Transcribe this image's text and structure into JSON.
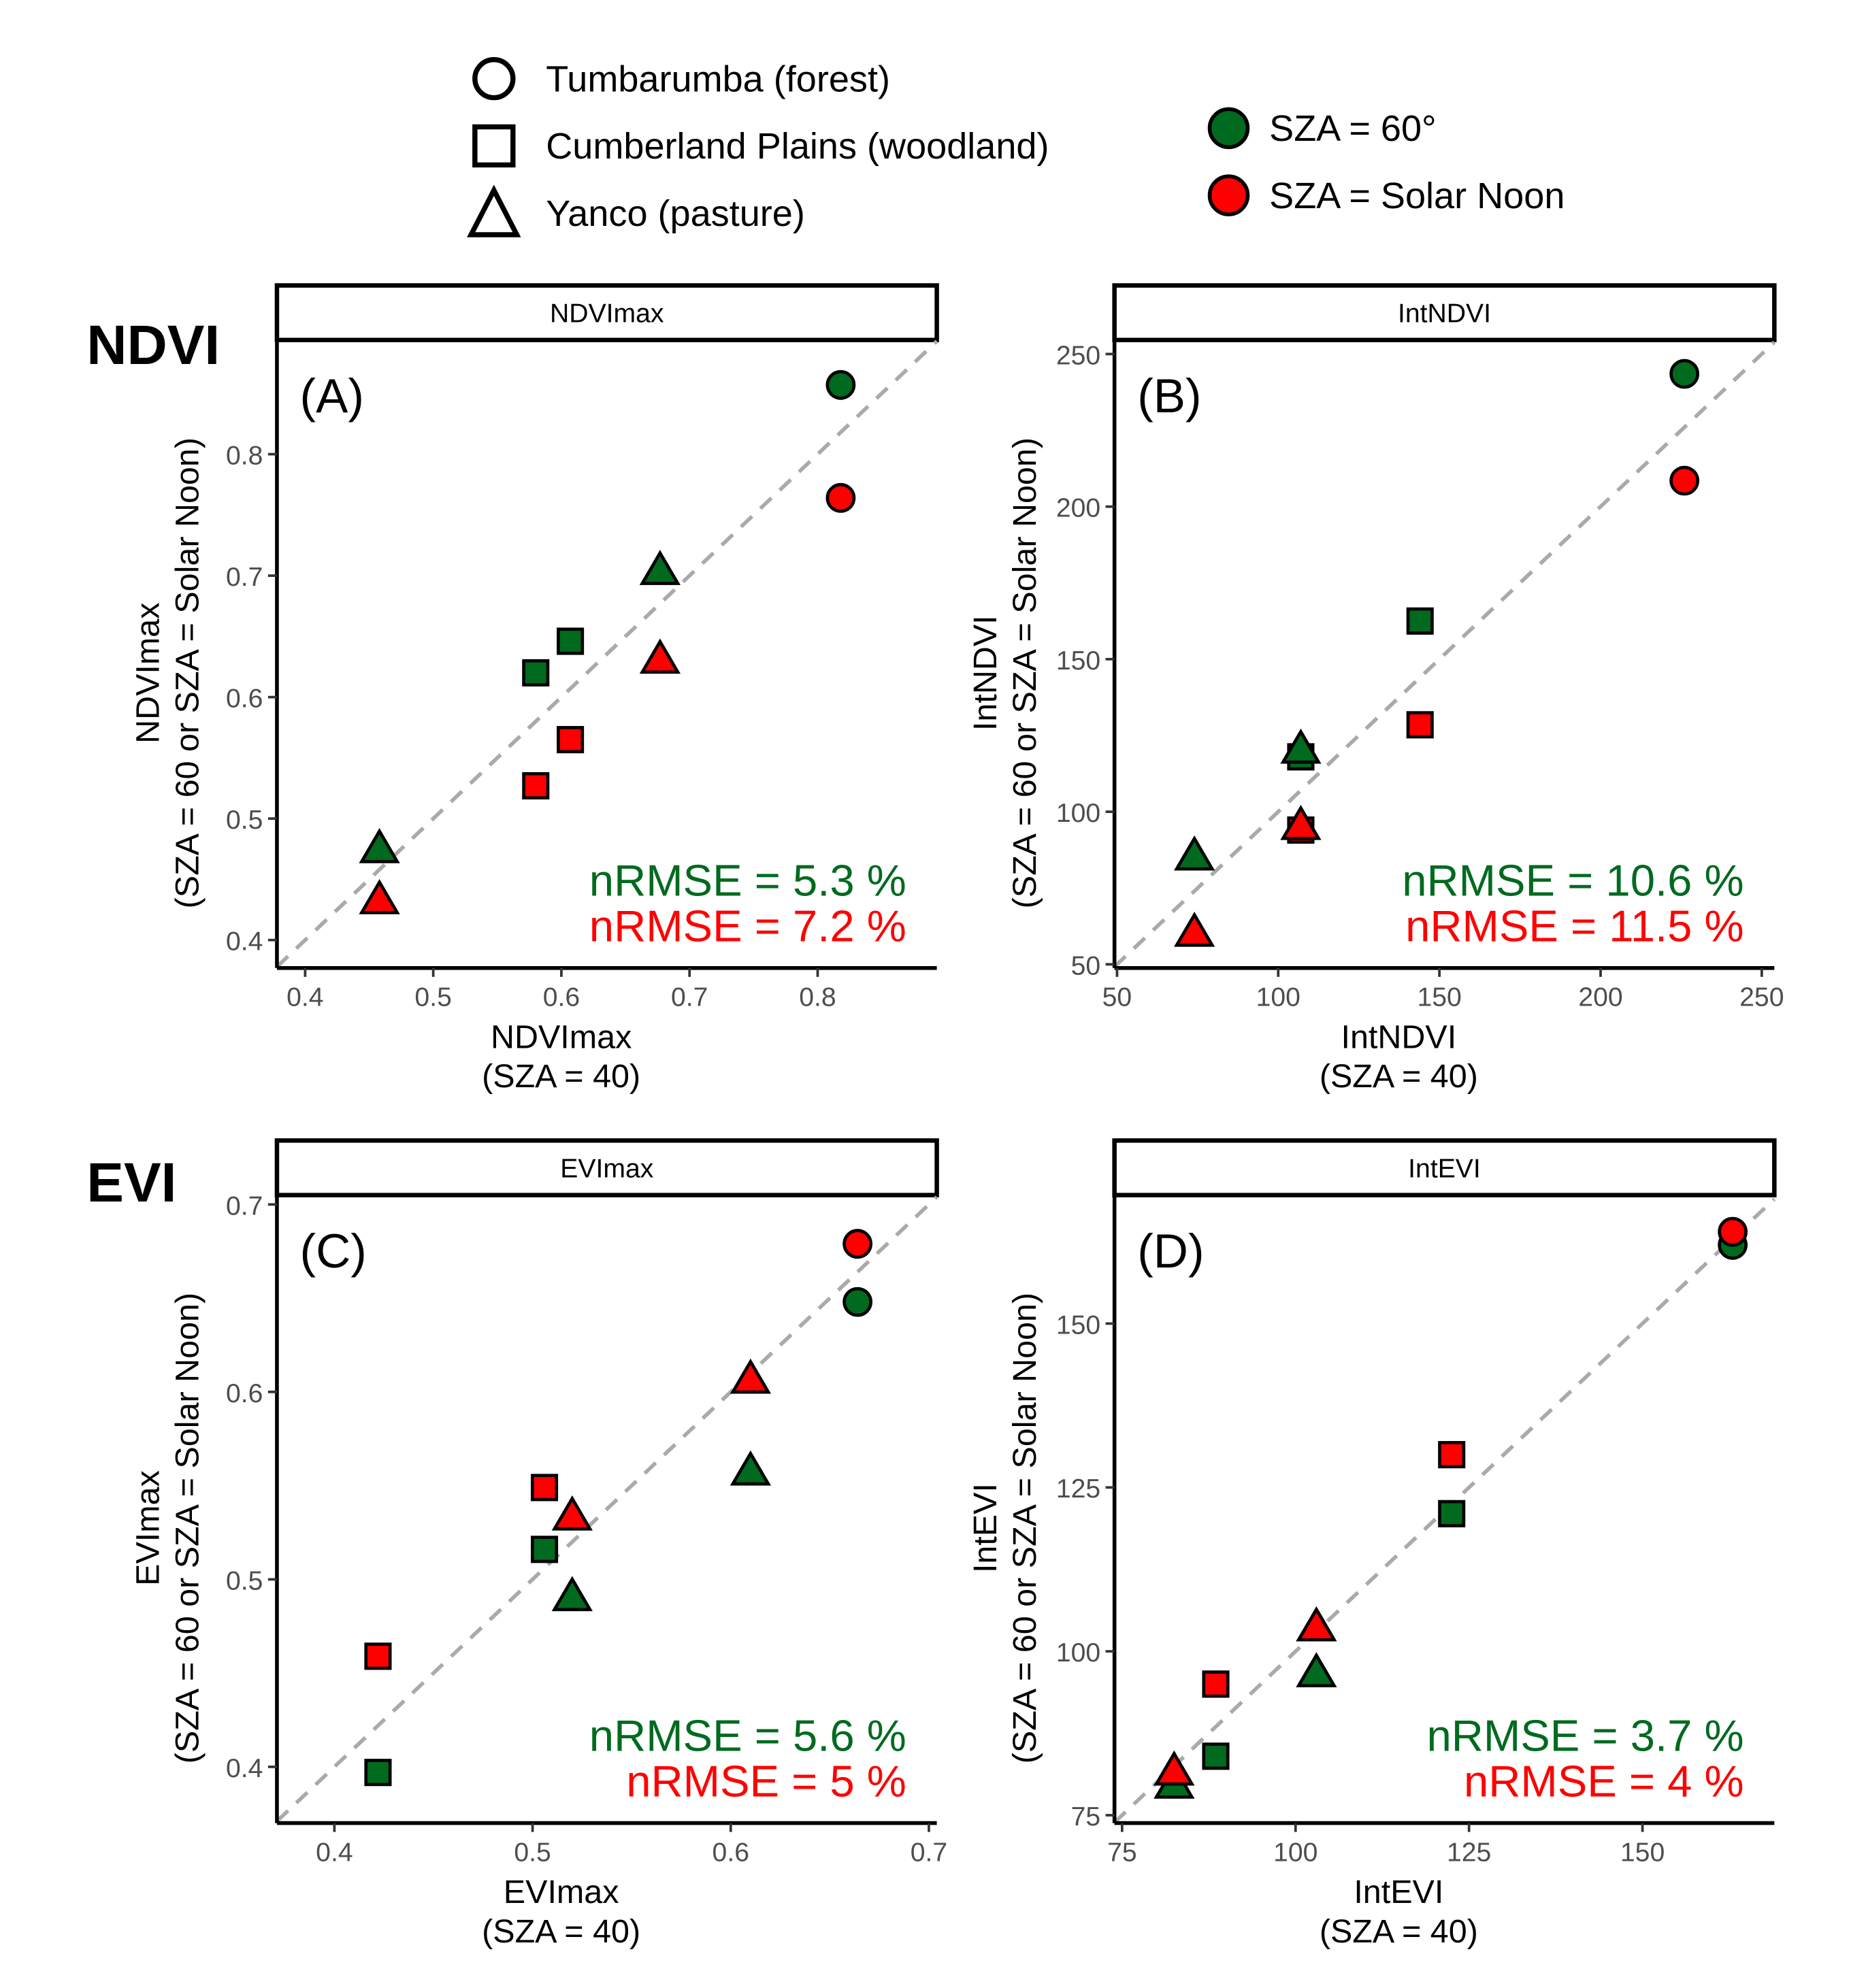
{
  "legend": {
    "shapes": [
      {
        "shape": "circle",
        "label": "Tumbarumba (forest)"
      },
      {
        "shape": "square",
        "label": "Cumberland Plains (woodland)"
      },
      {
        "shape": "triangle",
        "label": "Yanco (pasture)"
      }
    ],
    "colors": [
      {
        "color": "#006a1f",
        "label": "SZA = 60°"
      },
      {
        "color": "#ff0000",
        "label": "SZA = Solar Noon"
      }
    ]
  },
  "row_labels": {
    "ndvi": "NDVI",
    "evi": "EVI"
  },
  "chart_data": [
    {
      "type": "scatter",
      "panel_label": "(A)",
      "strip": "NDVImax",
      "xlabel": [
        "NDVImax",
        "(SZA = 40)"
      ],
      "ylabel": [
        "NDVImax",
        "(SZA = 60 or SZA = Solar Noon)"
      ],
      "xlim": [
        0.378,
        0.893
      ],
      "ylim": [
        0.377,
        0.894
      ],
      "xticks": [
        "0.4",
        "0.5",
        "0.6",
        "0.7",
        "0.8"
      ],
      "yticks": [
        "0.4",
        "0.5",
        "0.6",
        "0.7",
        "0.8"
      ],
      "nrmse": [
        "nRMSE = 5.3 %",
        "nRMSE = 7.2 %"
      ],
      "points": [
        {
          "site": "circle",
          "sza": "60",
          "x": 0.818,
          "y": 0.857
        },
        {
          "site": "circle",
          "sza": "noon",
          "x": 0.818,
          "y": 0.764
        },
        {
          "site": "square",
          "sza": "60",
          "x": 0.58,
          "y": 0.62
        },
        {
          "site": "square",
          "sza": "60",
          "x": 0.607,
          "y": 0.646
        },
        {
          "site": "square",
          "sza": "noon",
          "x": 0.58,
          "y": 0.527
        },
        {
          "site": "square",
          "sza": "noon",
          "x": 0.607,
          "y": 0.565
        },
        {
          "site": "triangle",
          "sza": "60",
          "x": 0.458,
          "y": 0.474
        },
        {
          "site": "triangle",
          "sza": "60",
          "x": 0.677,
          "y": 0.703
        },
        {
          "site": "triangle",
          "sza": "noon",
          "x": 0.458,
          "y": 0.432
        },
        {
          "site": "triangle",
          "sza": "noon",
          "x": 0.677,
          "y": 0.63
        }
      ]
    },
    {
      "type": "scatter",
      "panel_label": "(B)",
      "strip": "IntNDVI",
      "xlabel": [
        "IntNDVI",
        "(SZA = 40)"
      ],
      "ylabel": [
        "IntNDVI",
        "(SZA = 60 or SZA = Solar Noon)"
      ],
      "xlim": [
        49.2,
        253.9
      ],
      "ylim": [
        48.8,
        254.6
      ],
      "xticks": [
        "50",
        "100",
        "150",
        "200",
        "250"
      ],
      "yticks": [
        "50",
        "100",
        "150",
        "200",
        "250"
      ],
      "nrmse": [
        "nRMSE = 10.6 %",
        "nRMSE = 11.5 %"
      ],
      "points": [
        {
          "site": "circle",
          "sza": "60",
          "x": 226,
          "y": 243.5
        },
        {
          "site": "circle",
          "sza": "noon",
          "x": 226,
          "y": 208.5
        },
        {
          "site": "square",
          "sza": "60",
          "x": 144,
          "y": 162.5
        },
        {
          "site": "square",
          "sza": "noon",
          "x": 144,
          "y": 128.5
        },
        {
          "site": "square",
          "sza": "60",
          "x": 107,
          "y": 118
        },
        {
          "site": "square",
          "sza": "noon",
          "x": 107,
          "y": 94
        },
        {
          "site": "triangle",
          "sza": "60",
          "x": 74,
          "y": 85
        },
        {
          "site": "triangle",
          "sza": "60",
          "x": 107,
          "y": 120
        },
        {
          "site": "triangle",
          "sza": "noon",
          "x": 74,
          "y": 60
        },
        {
          "site": "triangle",
          "sza": "noon",
          "x": 107,
          "y": 95
        }
      ]
    },
    {
      "type": "scatter",
      "panel_label": "(C)",
      "strip": "EVImax",
      "xlabel": [
        "EVImax",
        "(SZA = 40)"
      ],
      "ylabel": [
        "EVImax",
        "(SZA = 60 or SZA = Solar Noon)"
      ],
      "xlim": [
        0.371,
        0.704
      ],
      "ylim": [
        0.37,
        0.705
      ],
      "xticks": [
        "0.4",
        "0.5",
        "0.6",
        "0.7"
      ],
      "yticks": [
        "0.4",
        "0.5",
        "0.6",
        "0.7"
      ],
      "nrmse": [
        "nRMSE = 5.6 %",
        "nRMSE = 5 %"
      ],
      "points": [
        {
          "site": "circle",
          "sza": "60",
          "x": 0.664,
          "y": 0.648
        },
        {
          "site": "circle",
          "sza": "noon",
          "x": 0.664,
          "y": 0.679
        },
        {
          "site": "square",
          "sza": "60",
          "x": 0.422,
          "y": 0.397
        },
        {
          "site": "square",
          "sza": "60",
          "x": 0.506,
          "y": 0.516
        },
        {
          "site": "square",
          "sza": "noon",
          "x": 0.422,
          "y": 0.459
        },
        {
          "site": "square",
          "sza": "noon",
          "x": 0.506,
          "y": 0.549
        },
        {
          "site": "triangle",
          "sza": "60",
          "x": 0.52,
          "y": 0.49
        },
        {
          "site": "triangle",
          "sza": "60",
          "x": 0.61,
          "y": 0.557
        },
        {
          "site": "triangle",
          "sza": "noon",
          "x": 0.52,
          "y": 0.533
        },
        {
          "site": "triangle",
          "sza": "noon",
          "x": 0.61,
          "y": 0.606
        }
      ]
    },
    {
      "type": "scatter",
      "panel_label": "(D)",
      "strip": "IntEVI",
      "xlabel": [
        "IntEVI",
        "(SZA = 40)"
      ],
      "ylabel": [
        "IntEVI",
        "(SZA = 60 or SZA = Solar Noon)"
      ],
      "xlim": [
        73.9,
        169
      ],
      "ylim": [
        73.8,
        169.6
      ],
      "xticks": [
        "75",
        "100",
        "125",
        "150"
      ],
      "yticks": [
        "75",
        "100",
        "125",
        "150"
      ],
      "nrmse": [
        "nRMSE = 3.7 %",
        "nRMSE = 4 %"
      ],
      "points": [
        {
          "site": "circle",
          "sza": "60",
          "x": 163,
          "y": 162
        },
        {
          "site": "circle",
          "sza": "noon",
          "x": 163,
          "y": 164
        },
        {
          "site": "square",
          "sza": "60",
          "x": 122.5,
          "y": 121
        },
        {
          "site": "square",
          "sza": "noon",
          "x": 122.5,
          "y": 130
        },
        {
          "site": "square",
          "sza": "60",
          "x": 88.5,
          "y": 84
        },
        {
          "site": "square",
          "sza": "noon",
          "x": 88.5,
          "y": 95
        },
        {
          "site": "triangle",
          "sza": "60",
          "x": 82.5,
          "y": 79.5
        },
        {
          "site": "triangle",
          "sza": "60",
          "x": 103,
          "y": 96.5
        },
        {
          "site": "triangle",
          "sza": "noon",
          "x": 82.5,
          "y": 81.5
        },
        {
          "site": "triangle",
          "sza": "noon",
          "x": 103,
          "y": 103.5
        }
      ]
    }
  ]
}
